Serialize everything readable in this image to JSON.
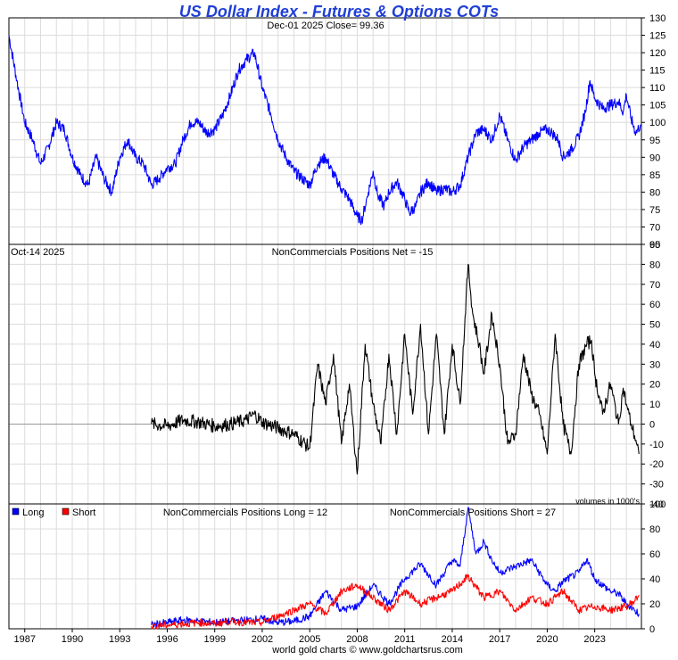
{
  "title": "US Dollar Index - Futures & Options COTs",
  "footer": "world gold charts © www.goldchartsrus.com",
  "colors": {
    "title": "#1f3fd6",
    "price_line": "#0000ff",
    "net_line": "#000000",
    "long_line": "#0000ff",
    "short_line": "#ff0000",
    "grid": "#dcdcdc",
    "axis": "#000000"
  },
  "chart_data": [
    {
      "id": "price",
      "type": "line",
      "header": "Dec-01  2025   Close= 99.36",
      "ylim": [
        65,
        130
      ],
      "yticks": [
        65,
        70,
        75,
        80,
        85,
        90,
        95,
        100,
        105,
        110,
        115,
        120,
        125,
        130
      ],
      "xlim": [
        1986,
        2025.95
      ],
      "grid": true,
      "series": [
        {
          "color": "#0000ff",
          "x": [
            1986.0,
            1986.5,
            1987.0,
            1987.5,
            1988.0,
            1988.5,
            1989.0,
            1989.5,
            1990.0,
            1990.5,
            1991.0,
            1991.5,
            1992.0,
            1992.5,
            1993.0,
            1993.5,
            1994.0,
            1994.5,
            1995.0,
            1995.5,
            1996.0,
            1996.5,
            1997.0,
            1997.5,
            1998.0,
            1998.5,
            1999.0,
            1999.5,
            2000.0,
            2000.5,
            2001.0,
            2001.5,
            2002.0,
            2002.5,
            2003.0,
            2003.5,
            2004.0,
            2004.5,
            2005.0,
            2005.5,
            2006.0,
            2006.5,
            2007.0,
            2007.5,
            2008.0,
            2008.3,
            2008.7,
            2009.0,
            2009.3,
            2009.7,
            2010.0,
            2010.5,
            2011.0,
            2011.3,
            2011.7,
            2012.0,
            2012.5,
            2013.0,
            2013.5,
            2014.0,
            2014.5,
            2015.0,
            2015.5,
            2016.0,
            2016.5,
            2017.0,
            2017.5,
            2018.0,
            2018.5,
            2019.0,
            2019.5,
            2020.0,
            2020.3,
            2020.7,
            2021.0,
            2021.5,
            2022.0,
            2022.4,
            2022.7,
            2023.0,
            2023.5,
            2024.0,
            2024.5,
            2024.8,
            2025.0,
            2025.3,
            2025.6,
            2025.9
          ],
          "y": [
            125,
            112,
            100,
            95,
            88,
            93,
            100,
            98,
            90,
            85,
            82,
            90,
            84,
            80,
            90,
            95,
            90,
            88,
            82,
            84,
            87,
            88,
            95,
            100,
            100,
            97,
            98,
            102,
            108,
            115,
            118,
            120,
            110,
            103,
            95,
            90,
            86,
            84,
            82,
            88,
            90,
            85,
            81,
            78,
            73,
            72,
            80,
            86,
            79,
            76,
            80,
            83,
            78,
            74,
            76,
            80,
            83,
            80,
            81,
            80,
            82,
            90,
            97,
            98,
            95,
            102,
            95,
            89,
            93,
            95,
            97,
            98,
            97,
            95,
            90,
            92,
            96,
            103,
            112,
            107,
            104,
            105,
            106,
            103,
            108,
            101,
            97,
            99.36
          ]
        }
      ]
    },
    {
      "id": "net",
      "type": "line",
      "header_left": "Oct-14  2025",
      "header_center": "NonCommercials Positions Net = -15",
      "note": "volumes in 1000's",
      "ylim": [
        -40,
        90
      ],
      "yticks": [
        -40,
        -30,
        -20,
        -10,
        0,
        10,
        20,
        30,
        40,
        50,
        60,
        70,
        80,
        90
      ],
      "xlim": [
        1986,
        2025.95
      ],
      "grid": true,
      "series": [
        {
          "color": "#000000",
          "x": [
            1995.0,
            1996.0,
            1997.0,
            1998.0,
            1999.0,
            2000.0,
            2001.0,
            2001.5,
            2002.0,
            2003.0,
            2004.0,
            2005.0,
            2005.5,
            2006.0,
            2006.5,
            2007.0,
            2007.5,
            2008.0,
            2008.5,
            2009.0,
            2009.5,
            2010.0,
            2010.5,
            2011.0,
            2011.5,
            2012.0,
            2012.5,
            2013.0,
            2013.5,
            2014.0,
            2014.5,
            2015.0,
            2015.3,
            2015.7,
            2016.0,
            2016.5,
            2017.0,
            2017.5,
            2018.0,
            2018.5,
            2019.0,
            2019.5,
            2020.0,
            2020.5,
            2021.0,
            2021.5,
            2022.0,
            2022.5,
            2022.8,
            2023.0,
            2023.5,
            2024.0,
            2024.5,
            2024.8,
            2025.0,
            2025.3,
            2025.6,
            2025.8
          ],
          "y": [
            0,
            -1,
            2,
            1,
            -1,
            0,
            2,
            5,
            1,
            -2,
            -5,
            -12,
            30,
            10,
            35,
            -10,
            20,
            -25,
            40,
            10,
            -10,
            35,
            -5,
            45,
            5,
            50,
            -5,
            45,
            -5,
            40,
            10,
            80,
            55,
            40,
            25,
            55,
            30,
            -10,
            -5,
            35,
            15,
            5,
            -15,
            45,
            0,
            -15,
            30,
            40,
            42,
            25,
            5,
            20,
            0,
            18,
            10,
            0,
            -8,
            -15
          ]
        }
      ]
    },
    {
      "id": "long_short",
      "type": "line",
      "legend": [
        {
          "label": "Long",
          "color": "#0000ff"
        },
        {
          "label": "Short",
          "color": "#ff0000"
        }
      ],
      "legend_position": "top-left",
      "header_long": "NonCommercials Positions Long = 12",
      "header_short": "NonCommercials Positions Short = 27",
      "ylim": [
        0,
        100
      ],
      "yticks": [
        0,
        20,
        40,
        60,
        80,
        100
      ],
      "xlim": [
        1986,
        2025.95
      ],
      "xticks": [
        "1987",
        "1990",
        "1993",
        "1996",
        "1999",
        "2002",
        "2005",
        "2008",
        "2011",
        "2014",
        "2017",
        "2020",
        "2023"
      ],
      "grid": true,
      "series": [
        {
          "name": "Long",
          "color": "#0000ff",
          "x": [
            1995.0,
            1996.0,
            1997.0,
            1998.0,
            1999.0,
            2000.0,
            2001.0,
            2002.0,
            2003.0,
            2004.0,
            2005.0,
            2006.0,
            2007.0,
            2008.0,
            2009.0,
            2010.0,
            2011.0,
            2012.0,
            2013.0,
            2014.0,
            2014.5,
            2015.0,
            2015.5,
            2016.0,
            2016.5,
            2017.0,
            2018.0,
            2019.0,
            2020.0,
            2020.5,
            2021.0,
            2022.0,
            2022.5,
            2023.0,
            2024.0,
            2024.5,
            2025.0,
            2025.5,
            2025.8
          ],
          "y": [
            3,
            5,
            7,
            6,
            5,
            6,
            7,
            8,
            5,
            6,
            10,
            30,
            15,
            18,
            35,
            20,
            40,
            52,
            35,
            55,
            50,
            97,
            60,
            70,
            55,
            45,
            50,
            55,
            35,
            30,
            38,
            45,
            56,
            40,
            30,
            28,
            20,
            15,
            12
          ]
        },
        {
          "name": "Short",
          "color": "#ff0000",
          "x": [
            1995.0,
            1996.0,
            1997.0,
            1998.0,
            1999.0,
            2000.0,
            2001.0,
            2002.0,
            2003.0,
            2004.0,
            2005.0,
            2006.0,
            2007.0,
            2008.0,
            2009.0,
            2010.0,
            2011.0,
            2012.0,
            2013.0,
            2014.0,
            2015.0,
            2016.0,
            2017.0,
            2018.0,
            2019.0,
            2020.0,
            2021.0,
            2022.0,
            2023.0,
            2024.0,
            2025.0,
            2025.5,
            2025.8
          ],
          "y": [
            2,
            3,
            4,
            5,
            4,
            6,
            5,
            5,
            10,
            15,
            20,
            12,
            30,
            35,
            25,
            15,
            30,
            20,
            25,
            30,
            42,
            25,
            30,
            15,
            25,
            20,
            30,
            15,
            18,
            15,
            18,
            22,
            27
          ]
        }
      ]
    }
  ]
}
